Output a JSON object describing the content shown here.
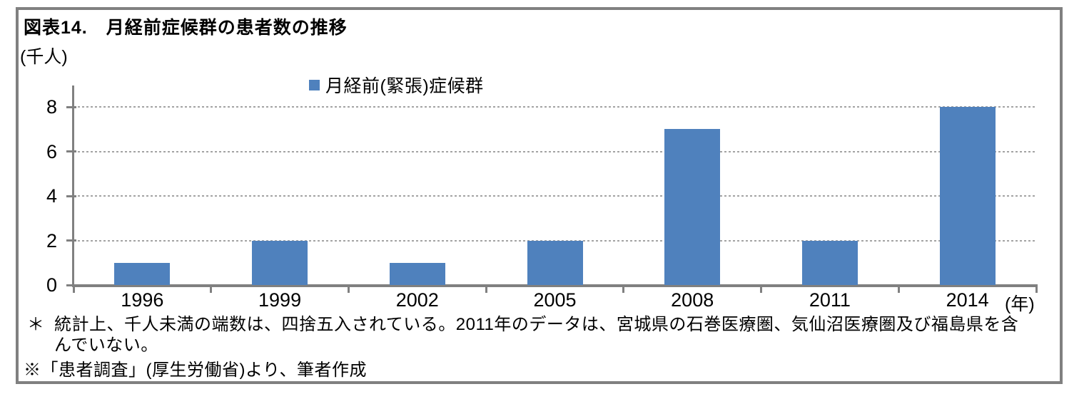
{
  "figure": {
    "title": "図表14.　月経前症候群の患者数の推移",
    "unit_label": "(千人)",
    "x_unit_label": "(年)"
  },
  "legend": {
    "label": "月経前(緊張)症候群"
  },
  "chart_data": {
    "type": "bar",
    "title": "図表14. 月経前症候群の患者数の推移",
    "series_name": "月経前(緊張)症候群",
    "categories": [
      "1996",
      "1999",
      "2002",
      "2005",
      "2008",
      "2011",
      "2014"
    ],
    "values": [
      1,
      2,
      1,
      2,
      7,
      2,
      8
    ],
    "xlabel": "(年)",
    "ylabel": "(千人)",
    "ylim": [
      0,
      8
    ],
    "yticks": [
      0,
      2,
      4,
      6,
      8
    ],
    "grid": "horizontal-dotted",
    "legend_position": "top-center",
    "bar_color": "#4F81BD"
  },
  "footnotes": {
    "note1_marker": "＊",
    "note1": "統計上、千人未満の端数は、四捨五入されている。2011年のデータは、宮城県の石巻医療圏、気仙沼医療圏及び福島県を含んでいない。",
    "note2": "※「患者調査」(厚生労働省)より、筆者作成"
  },
  "colors": {
    "bar": "#4F81BD",
    "axis": "#808080",
    "frame": "#808080",
    "gridline": "#A3A3A3",
    "text": "#000000"
  }
}
